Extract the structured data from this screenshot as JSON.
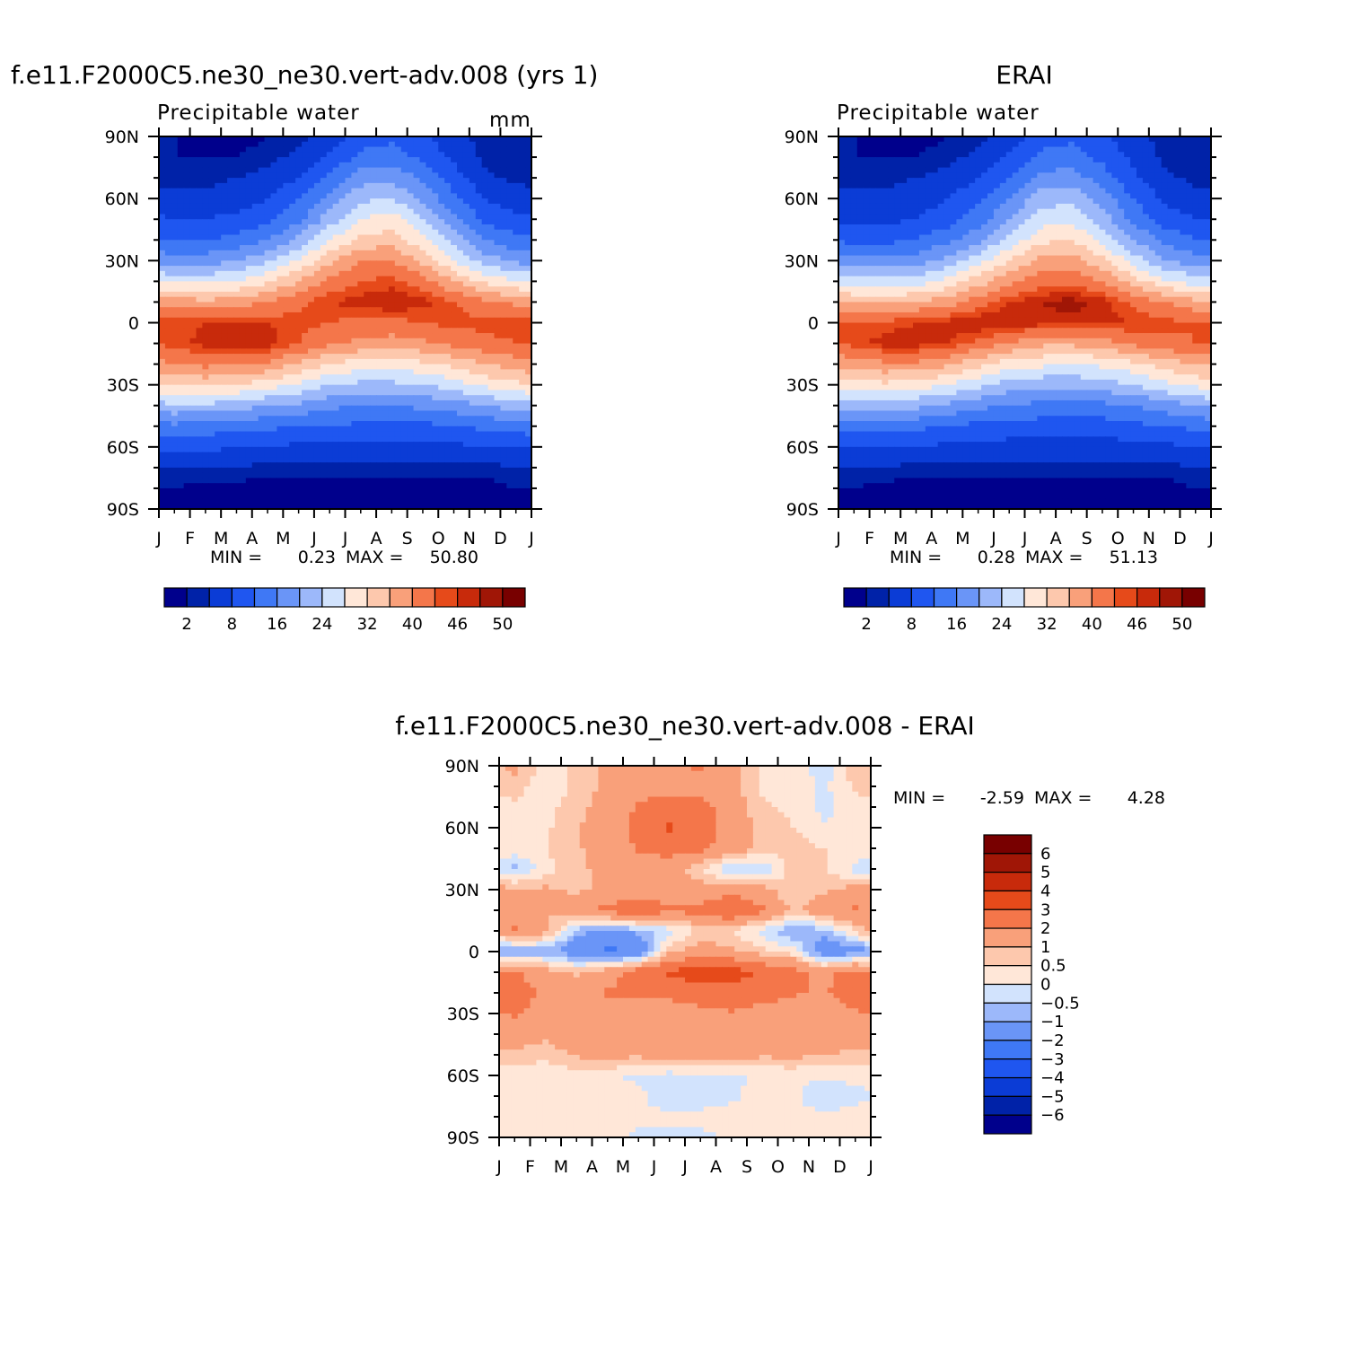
{
  "panels": [
    {
      "title": "f.e11.F2000C5.ne30_ne30.vert-adv.008 (yrs 1)",
      "subtitle": "Precipitable water",
      "units": "mm",
      "min_label": "MIN =",
      "min_value": "0.23",
      "max_label": "MAX =",
      "max_value": "50.80"
    },
    {
      "title": "ERAI",
      "subtitle": "Precipitable water",
      "min_label": "MIN =",
      "min_value": "0.28",
      "max_label": "MAX =",
      "max_value": "51.13"
    },
    {
      "title": "f.e11.F2000C5.ne30_ne30.vert-adv.008 - ERAI",
      "min_label": "MIN =",
      "min_value": "-2.59",
      "max_label": "MAX =",
      "max_value": "4.28"
    }
  ],
  "chart_data": [
    {
      "type": "heatmap",
      "title": "f.e11.F2000C5.ne30_ne30.vert-adv.008 (yrs 1)",
      "subtitle": "Precipitable water",
      "units": "mm",
      "x_ticks": [
        "J",
        "F",
        "M",
        "A",
        "M",
        "J",
        "J",
        "A",
        "S",
        "O",
        "N",
        "D",
        "J"
      ],
      "y_ticks": [
        "90N",
        "60N",
        "30N",
        "0",
        "30S",
        "60S",
        "90S"
      ],
      "ylim": [
        -90,
        90
      ],
      "contour_levels": [
        2,
        4,
        8,
        12,
        16,
        20,
        24,
        28,
        32,
        36,
        40,
        44,
        46,
        48,
        50
      ],
      "colorbar_labels": [
        "2",
        "8",
        "16",
        "24",
        "32",
        "40",
        "46",
        "50"
      ],
      "colors": [
        "#00008c",
        "#0022a8",
        "#0b3cd6",
        "#1f56f0",
        "#3f78f5",
        "#6a95f7",
        "#9cb8fa",
        "#d2e3fd",
        "#ffe7d8",
        "#fdc8ad",
        "#f9a07a",
        "#f4764a",
        "#e64a1a",
        "#c82a0b",
        "#a01606",
        "#780000"
      ],
      "min": 0.23,
      "max": 50.8,
      "x": [
        "Jan",
        "Feb",
        "Mar",
        "Apr",
        "May",
        "Jun",
        "Jul",
        "Aug",
        "Sep",
        "Oct",
        "Nov",
        "Dec"
      ],
      "lat": [
        90,
        80,
        70,
        60,
        50,
        40,
        30,
        20,
        10,
        0,
        -10,
        -20,
        -30,
        -40,
        -50,
        -60,
        -70,
        -80,
        -90
      ],
      "values": [
        [
          2,
          1,
          1,
          2,
          3,
          6,
          10,
          11,
          9,
          5,
          3,
          2
        ],
        [
          2,
          2,
          2,
          3,
          5,
          9,
          13,
          14,
          11,
          7,
          3,
          2
        ],
        [
          3,
          3,
          4,
          5,
          8,
          13,
          18,
          19,
          15,
          10,
          5,
          3
        ],
        [
          5,
          5,
          6,
          8,
          12,
          17,
          23,
          24,
          19,
          13,
          8,
          6
        ],
        [
          8,
          8,
          9,
          11,
          15,
          22,
          28,
          30,
          24,
          17,
          11,
          9
        ],
        [
          12,
          12,
          13,
          16,
          21,
          28,
          33,
          34,
          29,
          22,
          16,
          13
        ],
        [
          18,
          18,
          20,
          23,
          28,
          35,
          40,
          40,
          35,
          28,
          22,
          19
        ],
        [
          27,
          27,
          28,
          31,
          36,
          41,
          44,
          45,
          42,
          36,
          31,
          28
        ],
        [
          38,
          37,
          38,
          40,
          43,
          46,
          47,
          48,
          47,
          44,
          41,
          39
        ],
        [
          45,
          46,
          46,
          46,
          45,
          44,
          43,
          43,
          44,
          45,
          45,
          45
        ],
        [
          45,
          47,
          48,
          47,
          44,
          41,
          39,
          38,
          39,
          41,
          43,
          44
        ],
        [
          40,
          41,
          41,
          39,
          35,
          32,
          30,
          30,
          31,
          33,
          36,
          38
        ],
        [
          33,
          33,
          32,
          30,
          27,
          24,
          23,
          23,
          24,
          26,
          29,
          31
        ],
        [
          23,
          23,
          22,
          20,
          19,
          17,
          16,
          16,
          17,
          18,
          20,
          22
        ],
        [
          15,
          14,
          14,
          13,
          12,
          12,
          11,
          11,
          11,
          12,
          13,
          14
        ],
        [
          9,
          9,
          8,
          8,
          7,
          7,
          7,
          7,
          7,
          7,
          8,
          8
        ],
        [
          4,
          4,
          4,
          3,
          3,
          3,
          3,
          3,
          3,
          3,
          3,
          4
        ],
        [
          2,
          1,
          1,
          1,
          1,
          1,
          1,
          1,
          1,
          1,
          1,
          2
        ],
        [
          1,
          1,
          0.5,
          0.5,
          0.5,
          0.5,
          0.5,
          0.5,
          0.5,
          0.5,
          0.5,
          1
        ]
      ]
    },
    {
      "type": "heatmap",
      "title": "ERAI",
      "subtitle": "Precipitable water",
      "x_ticks": [
        "J",
        "F",
        "M",
        "A",
        "M",
        "J",
        "J",
        "A",
        "S",
        "O",
        "N",
        "D",
        "J"
      ],
      "y_ticks": [
        "90N",
        "60N",
        "30N",
        "0",
        "30S",
        "60S",
        "90S"
      ],
      "ylim": [
        -90,
        90
      ],
      "contour_levels": [
        2,
        4,
        8,
        12,
        16,
        20,
        24,
        28,
        32,
        36,
        40,
        44,
        46,
        48,
        50
      ],
      "colorbar_labels": [
        "2",
        "8",
        "16",
        "24",
        "32",
        "40",
        "46",
        "50"
      ],
      "colors": [
        "#00008c",
        "#0022a8",
        "#0b3cd6",
        "#1f56f0",
        "#3f78f5",
        "#6a95f7",
        "#9cb8fa",
        "#d2e3fd",
        "#ffe7d8",
        "#fdc8ad",
        "#f9a07a",
        "#f4764a",
        "#e64a1a",
        "#c82a0b",
        "#a01606",
        "#780000"
      ],
      "min": 0.28,
      "max": 51.13,
      "x": [
        "Jan",
        "Feb",
        "Mar",
        "Apr",
        "May",
        "Jun",
        "Jul",
        "Aug",
        "Sep",
        "Oct",
        "Nov",
        "Dec"
      ],
      "lat": [
        90,
        80,
        70,
        60,
        50,
        40,
        30,
        20,
        10,
        0,
        -10,
        -20,
        -30,
        -40,
        -50,
        -60,
        -70,
        -80,
        -90
      ],
      "values": [
        [
          2,
          1,
          1,
          2,
          3,
          6,
          10,
          11,
          9,
          5,
          3,
          2
        ],
        [
          2,
          2,
          2,
          3,
          5,
          9,
          13,
          14,
          11,
          7,
          3,
          2
        ],
        [
          3,
          3,
          4,
          5,
          8,
          12,
          17,
          18,
          14,
          9,
          5,
          3
        ],
        [
          5,
          5,
          6,
          8,
          11,
          16,
          22,
          23,
          18,
          12,
          7,
          5
        ],
        [
          7,
          7,
          8,
          10,
          14,
          20,
          26,
          27,
          22,
          15,
          10,
          8
        ],
        [
          11,
          11,
          12,
          15,
          19,
          25,
          31,
          32,
          27,
          20,
          15,
          12
        ],
        [
          17,
          17,
          18,
          21,
          26,
          32,
          37,
          38,
          33,
          26,
          20,
          18
        ],
        [
          25,
          25,
          26,
          29,
          34,
          39,
          42,
          43,
          40,
          34,
          29,
          26
        ],
        [
          36,
          35,
          36,
          38,
          42,
          46,
          48,
          49,
          47,
          43,
          40,
          37
        ],
        [
          44,
          45,
          46,
          47,
          48,
          48,
          47,
          47,
          47,
          46,
          45,
          44
        ],
        [
          45,
          47,
          47,
          46,
          43,
          40,
          37,
          37,
          38,
          41,
          43,
          44
        ],
        [
          38,
          39,
          39,
          37,
          33,
          30,
          29,
          28,
          29,
          31,
          34,
          36
        ],
        [
          31,
          31,
          30,
          28,
          25,
          22,
          21,
          21,
          22,
          24,
          27,
          29
        ],
        [
          22,
          21,
          21,
          19,
          17,
          16,
          15,
          15,
          15,
          16,
          18,
          20
        ],
        [
          14,
          13,
          13,
          12,
          11,
          11,
          10,
          10,
          10,
          11,
          12,
          13
        ],
        [
          8,
          8,
          8,
          7,
          7,
          6,
          6,
          6,
          6,
          7,
          7,
          8
        ],
        [
          4,
          4,
          3,
          3,
          3,
          3,
          3,
          3,
          3,
          3,
          3,
          4
        ],
        [
          2,
          1,
          1,
          1,
          1,
          1,
          1,
          1,
          1,
          1,
          1,
          2
        ],
        [
          1,
          1,
          0.5,
          0.5,
          0.5,
          0.5,
          0.5,
          0.5,
          0.5,
          0.5,
          0.5,
          1
        ]
      ]
    },
    {
      "type": "heatmap",
      "title": "f.e11.F2000C5.ne30_ne30.vert-adv.008 - ERAI",
      "x_ticks": [
        "J",
        "F",
        "M",
        "A",
        "M",
        "J",
        "J",
        "A",
        "S",
        "O",
        "N",
        "D",
        "J"
      ],
      "y_ticks": [
        "90N",
        "60N",
        "30N",
        "0",
        "30S",
        "60S",
        "90S"
      ],
      "ylim": [
        -90,
        90
      ],
      "contour_levels": [
        -6,
        -5,
        -4,
        -3,
        -2,
        -1,
        -0.5,
        0,
        0.5,
        1,
        2,
        3,
        4,
        5,
        6
      ],
      "colorbar_labels": [
        "6",
        "5",
        "4",
        "3",
        "2",
        "1",
        "0.5",
        "0",
        "-0.5",
        "-1",
        "-2",
        "-3",
        "-4",
        "-5",
        "-6"
      ],
      "colors": [
        "#00008c",
        "#0022a8",
        "#0b3cd6",
        "#1f56f0",
        "#3f78f5",
        "#6a95f7",
        "#9cb8fa",
        "#d2e3fd",
        "#ffe7d8",
        "#fdc8ad",
        "#f9a07a",
        "#f4764a",
        "#e64a1a",
        "#c82a0b",
        "#a01606",
        "#780000"
      ],
      "min": -2.59,
      "max": 4.28,
      "x": [
        "Jan",
        "Feb",
        "Mar",
        "Apr",
        "May",
        "Jun",
        "Jul",
        "Aug",
        "Sep",
        "Oct",
        "Nov",
        "Dec"
      ],
      "lat": [
        90,
        80,
        70,
        60,
        50,
        40,
        30,
        20,
        10,
        0,
        -10,
        -20,
        -30,
        -40,
        -50,
        -60,
        -70,
        -80,
        -90
      ],
      "values": [
        [
          1.2,
          0.3,
          0.6,
          1.1,
          1.4,
          1.6,
          2.2,
          1.3,
          0.3,
          0.2,
          -0.3,
          0.8
        ],
        [
          0.7,
          0.2,
          0.6,
          1.2,
          1.5,
          1.6,
          1.6,
          1.2,
          0.4,
          0.3,
          -0.1,
          0.6
        ],
        [
          0.4,
          0.3,
          0.8,
          1.3,
          2.1,
          2.6,
          2.3,
          1.5,
          0.6,
          0.4,
          -0.2,
          0.3
        ],
        [
          0.3,
          0.4,
          0.9,
          1.5,
          2.3,
          3.1,
          2.6,
          1.6,
          0.7,
          0.5,
          0.1,
          0.2
        ],
        [
          0.4,
          0.5,
          0.9,
          1.4,
          2.1,
          2.4,
          2.2,
          1.5,
          0.8,
          0.7,
          0.5,
          0.4
        ],
        [
          -0.7,
          0.3,
          0.8,
          1.3,
          1.6,
          1.4,
          0.6,
          -0.6,
          -0.4,
          0.7,
          0.6,
          -0.2
        ],
        [
          1.2,
          1.1,
          0.9,
          1.1,
          1.4,
          1.2,
          1.3,
          1.6,
          1.2,
          0.5,
          0.8,
          1.3
        ],
        [
          1.1,
          1.0,
          1.5,
          2.3,
          2.9,
          2.2,
          2.3,
          3.1,
          2.2,
          0.8,
          1.6,
          2.1
        ],
        [
          2.3,
          1.2,
          -0.7,
          -1.3,
          -0.8,
          -0.3,
          0.6,
          0.4,
          -0.2,
          -1.1,
          -0.6,
          0.4
        ],
        [
          -1.2,
          -0.8,
          -1.6,
          -2.2,
          -1.9,
          0.8,
          1.4,
          1.2,
          0.6,
          0.2,
          -1.7,
          -1.3
        ],
        [
          2.2,
          1.3,
          0.9,
          1.5,
          2.6,
          3.2,
          3.6,
          3.4,
          2.9,
          2.4,
          1.7,
          2.4
        ],
        [
          2.4,
          1.9,
          1.6,
          2.1,
          2.3,
          2.2,
          2.5,
          2.7,
          2.4,
          2.1,
          1.9,
          2.6
        ],
        [
          2.1,
          1.6,
          1.6,
          1.7,
          1.4,
          1.6,
          1.7,
          1.9,
          1.6,
          1.5,
          1.4,
          1.9
        ],
        [
          1.5,
          1.2,
          1.6,
          1.7,
          1.4,
          1.7,
          1.9,
          1.6,
          1.4,
          1.5,
          1.3,
          1.4
        ],
        [
          0.8,
          0.6,
          1.1,
          1.3,
          1.1,
          1.4,
          1.5,
          1.4,
          1.1,
          1.2,
          1.0,
          0.9
        ],
        [
          0.2,
          0.2,
          0.2,
          0.1,
          -0.1,
          -0.2,
          -0.2,
          -0.1,
          0.1,
          0.1,
          0.1,
          0.2
        ],
        [
          0.1,
          0.1,
          0.2,
          0.1,
          0.1,
          -0.3,
          -0.2,
          -0.1,
          0.2,
          0.1,
          -0.4,
          -0.2
        ],
        [
          0.3,
          0.2,
          0.3,
          0.3,
          0.1,
          0.1,
          0.1,
          0.2,
          0.2,
          0.2,
          0.1,
          0.3
        ],
        [
          0.1,
          0.1,
          0.1,
          0.1,
          -0.1,
          -0.1,
          -0.1,
          0.1,
          0.2,
          0.3,
          0.1,
          0.1
        ]
      ]
    }
  ]
}
